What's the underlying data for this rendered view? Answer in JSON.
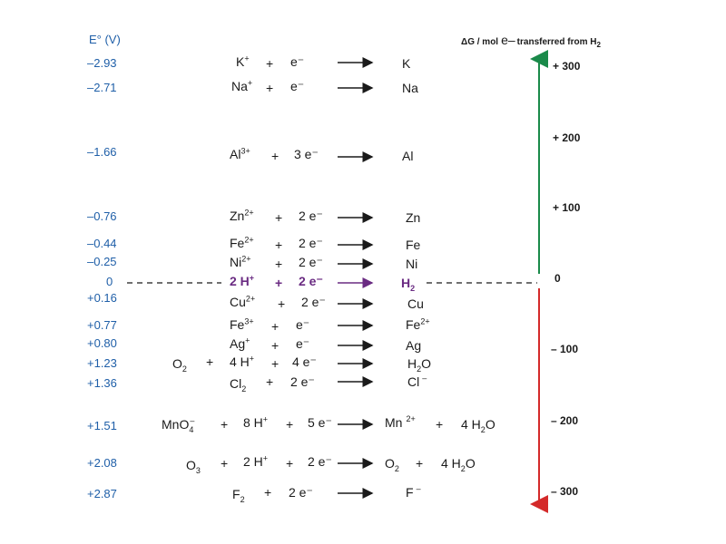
{
  "header": {
    "e0_label": "E° (V)",
    "dg_prefix": "ΔG / mol",
    "dg_e": "e–",
    "dg_suffix": "transferred from H",
    "dg_sub": "2"
  },
  "rows": [
    {
      "e0": "–2.93"
    },
    {
      "e0": "–2.71"
    },
    {
      "e0": "–1.66"
    },
    {
      "e0": "–0.76"
    },
    {
      "e0": "–0.44"
    },
    {
      "e0": "–0.25"
    },
    {
      "e0": "0"
    },
    {
      "e0": "+0.16"
    },
    {
      "e0": "+0.77"
    },
    {
      "e0": "+0.80"
    },
    {
      "e0": "+1.23"
    },
    {
      "e0": "+1.36"
    },
    {
      "e0": "+1.51"
    },
    {
      "e0": "+2.08"
    },
    {
      "e0": "+2.87"
    }
  ],
  "species": {
    "plus": "+",
    "arrow": "",
    "e_minus": "e⁻",
    "two_e": "2 e⁻",
    "three_e": "3 e⁻",
    "four_e": "4 e⁻",
    "five_e": "5 e⁻",
    "K": "K",
    "Na": "Na",
    "Al": "Al",
    "Zn": "Zn",
    "Fe": "Fe",
    "Ni": "Ni",
    "Cu": "Cu",
    "Ag": "Ag",
    "Mn": "Mn",
    "H": "H",
    "O": "O",
    "Cl": "Cl",
    "F": "F",
    "MnO": "MnO",
    "two_H": "2 H",
    "four_H": "4 H",
    "eight_H": "8 H",
    "four_H2O_coef": "4 H",
    "sup_plus": "+",
    "sup_2plus": "2+",
    "sup_3plus": "3+",
    "sup_minus": "–",
    "sub_2": "2",
    "sub_3": "3",
    "sub_4": "4",
    "O_letter": "O"
  },
  "dg_ticks": [
    "+ 300",
    "+ 200",
    "+ 100",
    "0",
    "– 100",
    "– 200",
    "– 300"
  ],
  "colors": {
    "e0_blue": "#1f5fa8",
    "h2_purple": "#6a2b82",
    "up_arrow_green": "#1a8a4a",
    "down_arrow_red": "#d42a2a"
  }
}
